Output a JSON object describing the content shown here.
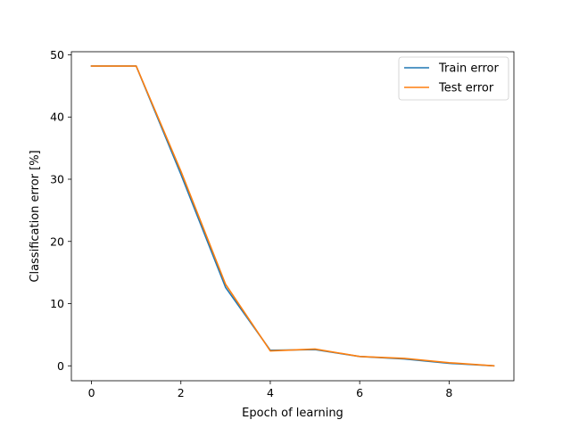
{
  "chart_data": {
    "type": "line",
    "title": "",
    "xlabel": "Epoch of learning",
    "ylabel": "Classification error [%]",
    "xlim": [
      -0.45,
      9.45
    ],
    "ylim": [
      -2.4,
      50.5
    ],
    "xticks": [
      0,
      2,
      4,
      6,
      8
    ],
    "yticks": [
      0,
      10,
      20,
      30,
      40,
      50
    ],
    "grid": false,
    "legend_position": "top-right",
    "x": [
      0,
      1,
      2,
      3,
      4,
      5,
      6,
      7,
      8,
      9
    ],
    "series": [
      {
        "name": "Train error",
        "color": "#1f77b4",
        "values": [
          48.2,
          48.2,
          30.8,
          12.6,
          2.5,
          2.6,
          1.5,
          1.1,
          0.4,
          0.0
        ]
      },
      {
        "name": "Test error",
        "color": "#ff7f0e",
        "values": [
          48.2,
          48.2,
          31.3,
          13.1,
          2.4,
          2.7,
          1.5,
          1.2,
          0.5,
          0.0
        ]
      }
    ]
  }
}
